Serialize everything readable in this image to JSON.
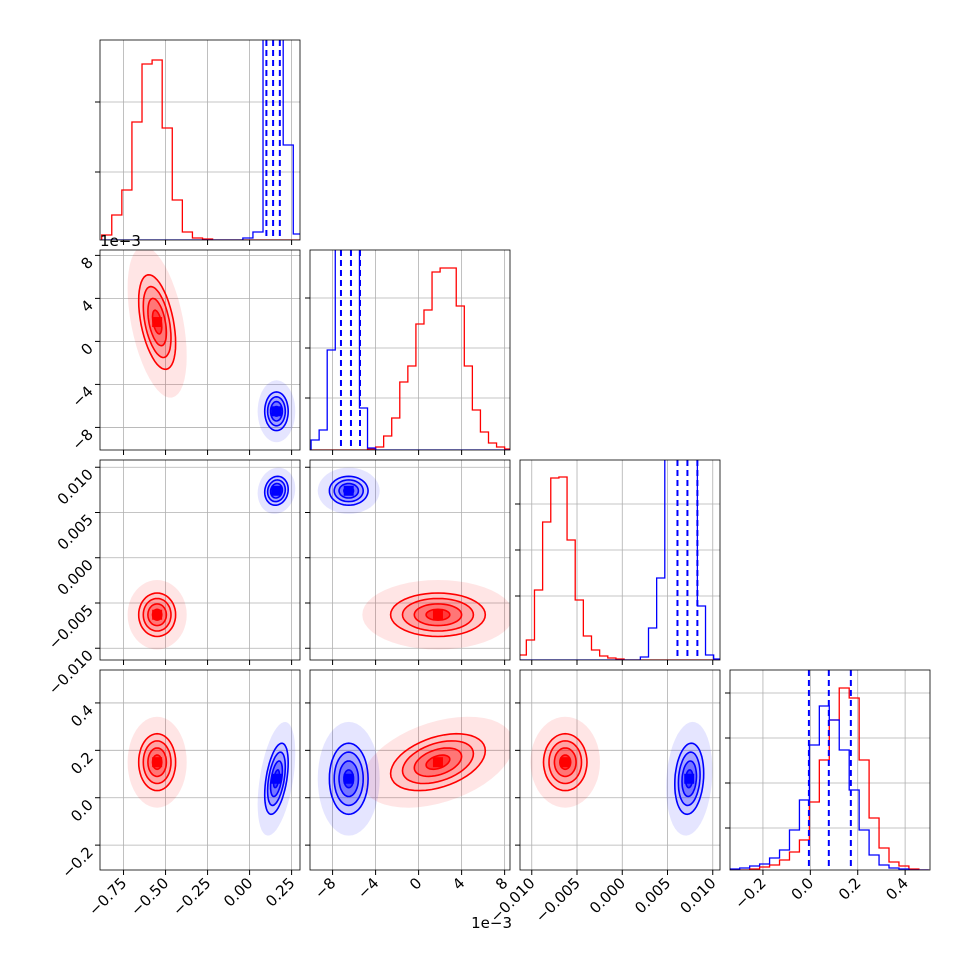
{
  "chart_data": {
    "type": "corner",
    "variables": [
      {
        "lim": [
          -0.89,
          0.3
        ],
        "ticks": [
          {
            "value": -0.75,
            "label": "−0.75"
          },
          {
            "value": -0.5,
            "label": "−0.50"
          },
          {
            "value": -0.25,
            "label": "−0.25"
          },
          {
            "value": 0,
            "label": "0.00"
          },
          0.25
        ],
        "bins": [
          -0.88,
          -0.82,
          -0.76,
          -0.7,
          -0.64,
          -0.58,
          -0.52,
          -0.46,
          -0.4,
          -0.34,
          -0.28,
          -0.22,
          -0.16,
          -0.1,
          -0.04,
          0.02,
          0.08,
          0.14,
          0.2,
          0.26,
          0.32
        ],
        "hist_ylim": [
          0,
          200
        ],
        "hist_yticks": [
          68,
          138
        ]
      },
      {
        "lim": [
          -10.1,
          8.5
        ],
        "ticks": [
          {
            "value": -8,
            "label": "−8"
          },
          {
            "value": -4,
            "label": "−4"
          },
          0,
          4,
          8
        ],
        "offset_label": "1e−3",
        "bins": [
          -10,
          -9.25,
          -8.5,
          -7.75,
          -7,
          -6.25,
          -5.5,
          -4.75,
          -4,
          -3.25,
          -2.5,
          -1.75,
          -1,
          -0.25,
          0.5,
          1.25,
          2,
          2.75,
          3.5,
          4.25,
          5,
          5.75,
          6.5,
          7.25,
          8,
          8.75
        ],
        "hist_ylim": [
          0,
          200
        ],
        "hist_yticks": [
          52,
          102,
          152
        ]
      },
      {
        "lim": [
          -0.0113,
          0.0108
        ],
        "ticks": [
          {
            "value": -0.01,
            "label": "−0.010"
          },
          {
            "value": -0.005,
            "label": "−0.005"
          },
          {
            "value": 0,
            "label": "0.000"
          },
          0.005,
          {
            "value": 0.01,
            "label": "0.010"
          }
        ],
        "bins": [
          -0.0115,
          -0.0106,
          -0.0097,
          -0.0088,
          -0.0079,
          -0.007,
          -0.0061,
          -0.0052,
          -0.0043,
          -0.0034,
          -0.0025,
          -0.0016,
          -0.0007,
          0.0002,
          0.0011,
          0.002,
          0.0029,
          0.0038,
          0.0047,
          0.0056,
          0.0065,
          0.0074,
          0.0083,
          0.0092,
          0.0101,
          0.011
        ],
        "hist_ylim": [
          0,
          200
        ],
        "hist_yticks": [
          64,
          110,
          156
        ]
      },
      {
        "lim": [
          -0.339,
          0.505
        ],
        "ylim": [
          -0.305,
          0.539
        ],
        "ticks": [
          {
            "value": -0.2,
            "label": "−0.2"
          },
          {
            "value": 0,
            "label": "0.0"
          },
          0.2,
          0.4
        ],
        "bins": [
          -0.34,
          -0.298,
          -0.256,
          -0.214,
          -0.172,
          -0.13,
          -0.088,
          -0.046,
          -0.004,
          0.038,
          0.08,
          0.122,
          0.164,
          0.206,
          0.248,
          0.29,
          0.332,
          0.374,
          0.416,
          0.458,
          0.5
        ],
        "hist_ylim": [
          0,
          200
        ],
        "hist_yticks": [
          42,
          87,
          132,
          177
        ]
      }
    ],
    "series": [
      {
        "color": "#ff0000",
        "mean": [
          -0.55,
          1.8,
          -0.0063,
          0.15
        ],
        "std": [
          0.055,
          2.2,
          0.0012,
          0.06
        ],
        "corr": [
          -0.45,
          0,
          0,
          0,
          0.4,
          0
        ],
        "hist": [
          [
            5,
            25,
            50,
            118,
            176,
            180,
            112,
            40,
            8,
            2,
            1,
            0,
            0,
            0,
            0,
            0,
            0,
            0,
            0,
            0
          ],
          [
            0,
            0,
            0,
            0,
            0,
            0,
            0,
            1,
            3,
            14,
            32,
            68,
            84,
            126,
            140,
            178,
            182,
            182,
            144,
            84,
            40,
            18,
            7,
            3,
            1
          ],
          [
            5,
            20,
            70,
            138,
            182,
            183,
            120,
            60,
            24,
            10,
            4,
            2,
            1,
            0,
            0,
            0,
            0,
            0,
            0,
            0,
            0,
            0,
            0,
            0,
            0
          ],
          [
            0,
            0,
            1,
            3,
            5,
            10,
            18,
            30,
            68,
            110,
            150,
            182,
            172,
            110,
            52,
            22,
            8,
            4,
            1,
            0
          ]
        ]
      },
      {
        "color": "#0000ff",
        "mean": [
          0.16,
          -6.5,
          0.0074,
          0.08
        ],
        "std": [
          0.035,
          0.9,
          0.0008,
          0.075
        ],
        "corr": [
          0,
          0.1,
          0,
          0.45,
          0,
          0.15
        ],
        "quantiles": [
          [
            0.1,
            0.14,
            0.18
          ],
          [
            -7.22,
            -6.29,
            -5.45
          ],
          [
            0.0061,
            0.0072,
            0.0083
          ],
          [
            -0.006,
            0.078,
            0.171
          ]
        ],
        "hist": [
          [
            0,
            0,
            0,
            0,
            0,
            0,
            0,
            0,
            0,
            0,
            0,
            0,
            0,
            0,
            2,
            8,
            300,
            300,
            95,
            6
          ],
          [
            10,
            20,
            100,
            260,
            300,
            260,
            42,
            2,
            0,
            0,
            0,
            0,
            0,
            0,
            0,
            0,
            0,
            0,
            0,
            0,
            0,
            0,
            0,
            0,
            0
          ],
          [
            0,
            0,
            0,
            0,
            0,
            0,
            0,
            0,
            0,
            0,
            0,
            0,
            0,
            0,
            0,
            3,
            32,
            82,
            250,
            300,
            300,
            280,
            54,
            5,
            1
          ],
          [
            1,
            2,
            4,
            6,
            12,
            20,
            40,
            70,
            125,
            164,
            150,
            120,
            80,
            40,
            15,
            5,
            2,
            1,
            0,
            0
          ]
        ]
      }
    ]
  }
}
